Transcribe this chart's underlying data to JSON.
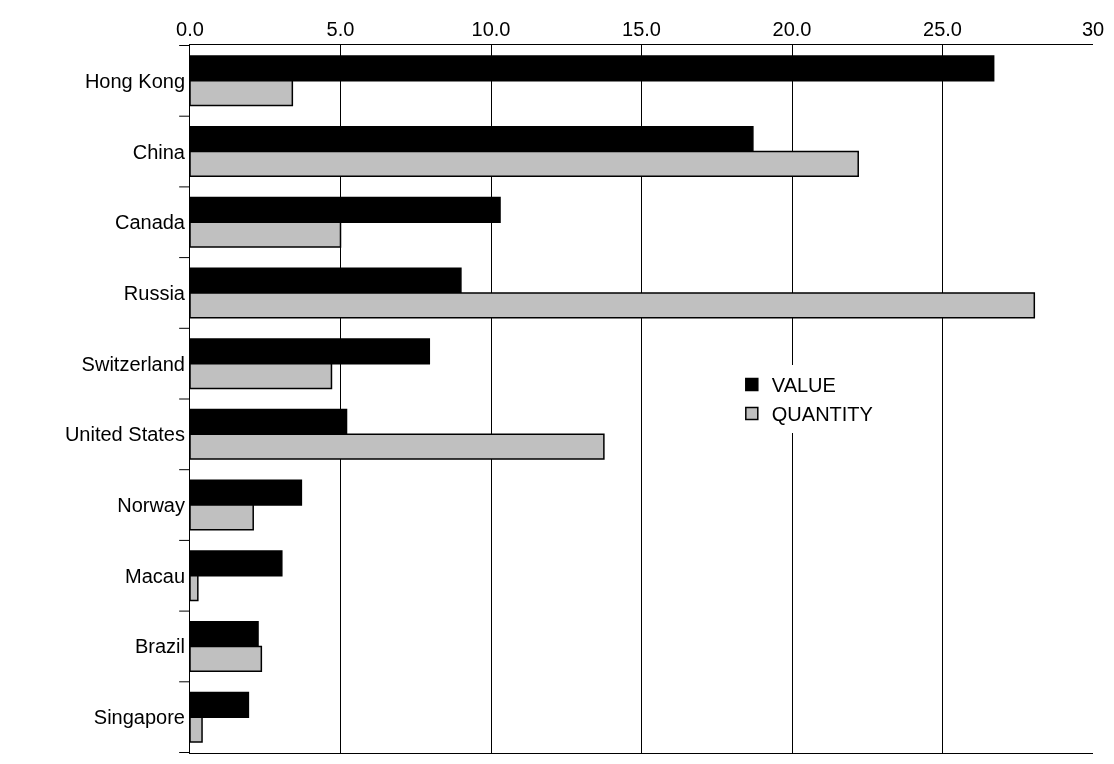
{
  "chart_data": {
    "type": "bar",
    "orientation": "horizontal",
    "categories": [
      "Hong Kong",
      "China",
      "Canada",
      "Russia",
      "Switzerland",
      "United States",
      "Norway",
      "Macau",
      "Brazil",
      "Singapore"
    ],
    "series": [
      {
        "name": "VALUE",
        "color": "#000000",
        "values": [
          26.7,
          18.7,
          10.3,
          9.0,
          7.95,
          5.2,
          3.7,
          3.05,
          2.26,
          1.94
        ]
      },
      {
        "name": "QUANTITY",
        "color": "#c0c0c0",
        "values": [
          3.4,
          22.2,
          5.0,
          28.05,
          4.7,
          13.75,
          2.1,
          0.26,
          2.37,
          0.4
        ]
      }
    ],
    "xlim": [
      0,
      30
    ],
    "xticks": [
      {
        "value": 0,
        "label": "0.0"
      },
      {
        "value": 5,
        "label": "5.0"
      },
      {
        "value": 10,
        "label": "10.0"
      },
      {
        "value": 15,
        "label": "15.0"
      },
      {
        "value": 20,
        "label": "20.0"
      },
      {
        "value": 25,
        "label": "25.0"
      },
      30
    ],
    "grid": "x",
    "legend": "right"
  }
}
